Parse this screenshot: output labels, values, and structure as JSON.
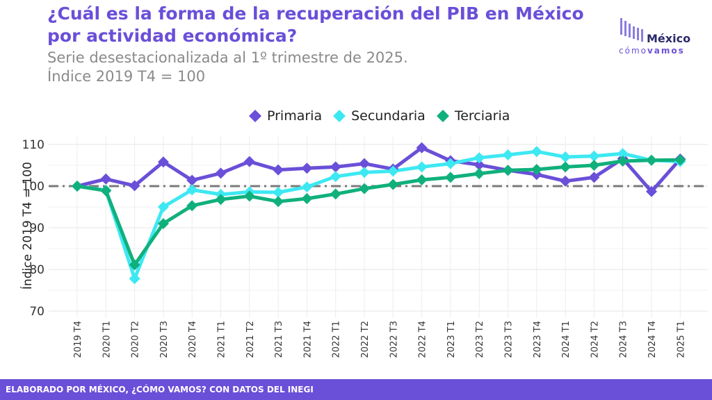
{
  "header": {
    "title": "¿Cuál es la forma de la recuperación del PIB en México por actividad económica?",
    "subtitle_line1": "Serie desestacionalizada al 1º trimestre de 2025.",
    "subtitle_line2": "Índice 2019 T4 = 100"
  },
  "logo": {
    "name": "México",
    "tagline_a": "cómo",
    "tagline_b": "vamos"
  },
  "footer": {
    "text": "ELABORADO POR MÉXICO, ¿CÓMO VAMOS? CON DATOS DEL INEGI"
  },
  "colors": {
    "primaria": "#6a4fd8",
    "secundaria": "#3ee8f2",
    "terciaria": "#10b07c",
    "reference": "#7a7a7a",
    "footer": "#6a4fd8"
  },
  "chart_data": {
    "type": "line",
    "title": "¿Cuál es la forma de la recuperación del PIB en México por actividad económica?",
    "ylabel": "Índice 2019 T4 = 100",
    "xlabel": "",
    "ylim": [
      70,
      112
    ],
    "yticks": [
      70,
      80,
      90,
      100,
      110
    ],
    "reference_line": 100,
    "legend_position": "top",
    "grid": true,
    "categories": [
      "2019 T4",
      "2020 T1",
      "2020 T2",
      "2020 T3",
      "2020 T4",
      "2021 T1",
      "2021 T2",
      "2021 T3",
      "2021 T4",
      "2022 T1",
      "2022 T2",
      "2022 T3",
      "2022 T4",
      "2023 T1",
      "2023 T2",
      "2023 T3",
      "2023 T4",
      "2024 T1",
      "2024 T2",
      "2024 T3",
      "2024 T4",
      "2025 T1"
    ],
    "series": [
      {
        "name": "Primaria",
        "color": "#6a4fd8",
        "values": [
          100,
          101.7,
          100.1,
          105.8,
          101.4,
          103.1,
          105.9,
          103.9,
          104.3,
          104.6,
          105.4,
          104.1,
          109.2,
          106.1,
          105.1,
          103.8,
          102.8,
          101.2,
          102.1,
          106.6,
          98.7,
          106.5
        ]
      },
      {
        "name": "Secundaria",
        "color": "#3ee8f2",
        "values": [
          100,
          99.0,
          77.8,
          95.0,
          99.1,
          98.0,
          98.6,
          98.5,
          99.8,
          102.3,
          103.3,
          103.6,
          104.6,
          105.4,
          106.8,
          107.5,
          108.3,
          107.0,
          107.2,
          107.8,
          106.2,
          105.9
        ]
      },
      {
        "name": "Terciaria",
        "color": "#10b07c",
        "values": [
          100,
          98.9,
          81.1,
          91.0,
          95.3,
          96.8,
          97.6,
          96.3,
          97.0,
          98.1,
          99.4,
          100.4,
          101.5,
          102.1,
          103.0,
          103.8,
          104.0,
          104.6,
          105.0,
          106.0,
          106.2,
          106.3
        ]
      }
    ]
  }
}
